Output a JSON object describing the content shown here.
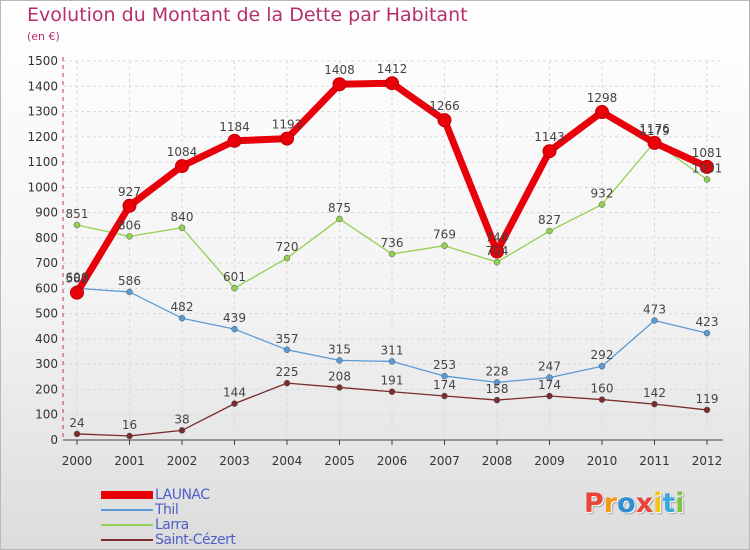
{
  "title": "Evolution du Montant de la Dette par Habitant",
  "subtitle": "(en €)",
  "logo": {
    "letters": [
      "P",
      "r",
      "o",
      "x",
      "i",
      "t",
      "i"
    ],
    "colors": [
      "#e8463a",
      "#f29a1e",
      "#2f8fd0",
      "#e8463a",
      "#f5c21a",
      "#3aa9e0",
      "#7cc243"
    ]
  },
  "chart_data": {
    "type": "line",
    "x": [
      "2000",
      "2001",
      "2002",
      "2003",
      "2004",
      "2005",
      "2006",
      "2007",
      "2008",
      "2009",
      "2010",
      "2011",
      "2012"
    ],
    "ylim": [
      0,
      1500
    ],
    "yticks": [
      0,
      100,
      200,
      300,
      400,
      500,
      600,
      700,
      800,
      900,
      1000,
      1100,
      1200,
      1300,
      1400,
      1500
    ],
    "grid": true,
    "legend_position": "bottom-left",
    "series": [
      {
        "name": "LAUNAC",
        "color": "#e8000b",
        "values": [
          583,
          927,
          1084,
          1184,
          1193,
          1408,
          1412,
          1266,
          746,
          1143,
          1298,
          1176,
          1081
        ],
        "labels": [
          "583",
          "927",
          "1084",
          "1184",
          "1193",
          "1408",
          "1412",
          "1266",
          "746",
          "1143",
          "1298",
          "1176",
          "1081"
        ]
      },
      {
        "name": "Thil",
        "color": "#5b9bd5",
        "values": [
          600,
          586,
          482,
          439,
          357,
          315,
          311,
          253,
          228,
          247,
          292,
          473,
          423
        ],
        "labels": [
          "600",
          "586",
          "482",
          "439",
          "357",
          "315",
          "311",
          "253",
          "228",
          "247",
          "292",
          "473",
          "423"
        ]
      },
      {
        "name": "Larra",
        "color": "#92d050",
        "values": [
          851,
          806,
          840,
          601,
          720,
          875,
          736,
          769,
          704,
          827,
          932,
          1179,
          1031
        ],
        "labels": [
          "851",
          "806",
          "840",
          "601",
          "720",
          "875",
          "736",
          "769",
          "704",
          "827",
          "932",
          "1179",
          "1031"
        ]
      },
      {
        "name": "Saint-Cézert",
        "color": "#7b2c2c",
        "values": [
          24,
          16,
          38,
          144,
          225,
          208,
          191,
          174,
          158,
          174,
          160,
          142,
          119
        ],
        "labels": [
          "24",
          "16",
          "38",
          "144",
          "225",
          "208",
          "191",
          "174",
          "158",
          "174",
          "160",
          "142",
          "119"
        ]
      }
    ]
  }
}
